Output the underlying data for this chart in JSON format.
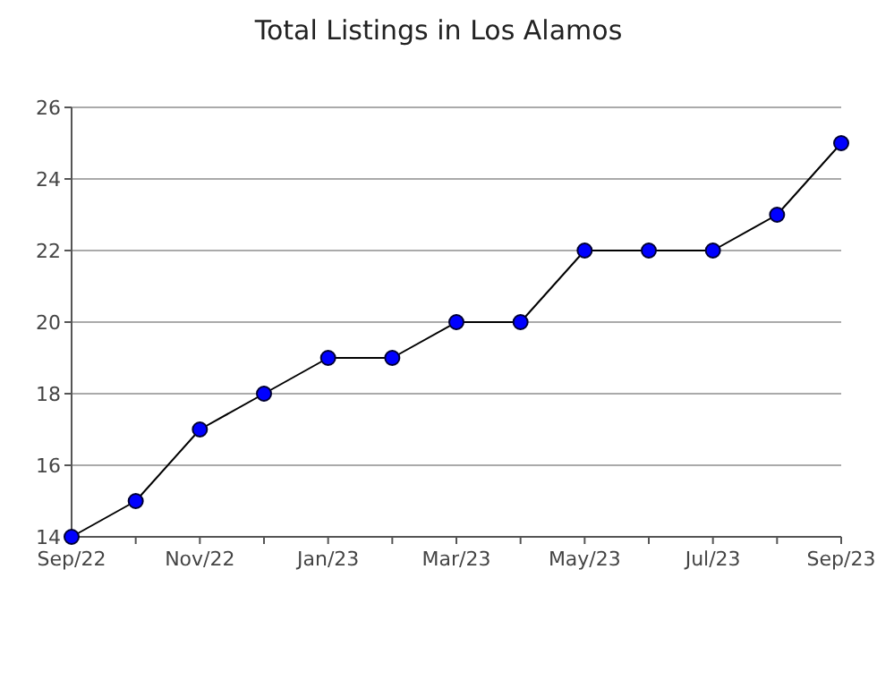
{
  "chart_data": {
    "type": "line",
    "title": "Total Listings in Los Alamos",
    "categories": [
      "Sep/22",
      null,
      "Nov/22",
      null,
      "Jan/23",
      null,
      "Mar/23",
      null,
      "May/23",
      null,
      "Jul/23",
      null,
      "Sep/23"
    ],
    "series": [
      {
        "color": "#0000ff",
        "values": [
          14,
          15,
          17,
          18,
          19,
          19,
          20,
          20,
          22,
          22,
          22,
          23,
          25
        ]
      }
    ],
    "ylim": [
      14,
      26
    ],
    "yticks": [
      14,
      16,
      18,
      20,
      22,
      24,
      26
    ],
    "grid": "y",
    "marker": "circle",
    "line_style": "solid"
  }
}
